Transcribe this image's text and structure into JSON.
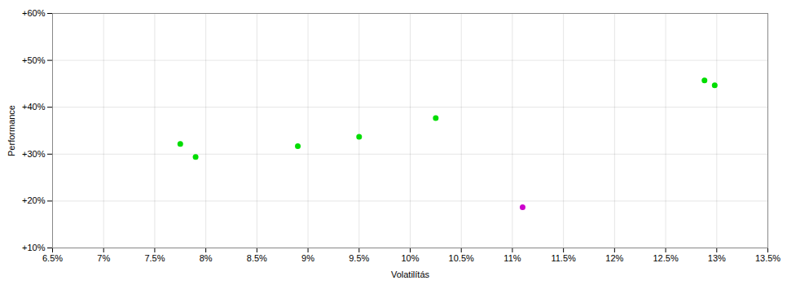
{
  "chart_data": {
    "type": "scatter",
    "xlabel": "Volatilítás",
    "ylabel": "Performance",
    "xlim": [
      0.065,
      0.135
    ],
    "ylim": [
      0.1,
      0.6
    ],
    "xticks": [
      {
        "value": 0.065,
        "label": "6.5%"
      },
      {
        "value": 0.07,
        "label": "7%"
      },
      {
        "value": 0.075,
        "label": "7.5%"
      },
      {
        "value": 0.08,
        "label": "8%"
      },
      {
        "value": 0.085,
        "label": "8.5%"
      },
      {
        "value": 0.09,
        "label": "9%"
      },
      {
        "value": 0.095,
        "label": "9.5%"
      },
      {
        "value": 0.1,
        "label": "10%"
      },
      {
        "value": 0.105,
        "label": "10.5%"
      },
      {
        "value": 0.11,
        "label": "11%"
      },
      {
        "value": 0.115,
        "label": "11.5%"
      },
      {
        "value": 0.12,
        "label": "12%"
      },
      {
        "value": 0.125,
        "label": "12.5%"
      },
      {
        "value": 0.13,
        "label": "13%"
      },
      {
        "value": 0.135,
        "label": "13.5%"
      }
    ],
    "yticks": [
      {
        "value": 0.1,
        "label": "+10%"
      },
      {
        "value": 0.2,
        "label": "+20%"
      },
      {
        "value": 0.3,
        "label": "+30%"
      },
      {
        "value": 0.4,
        "label": "+40%"
      },
      {
        "value": 0.5,
        "label": "+50%"
      },
      {
        "value": 0.6,
        "label": "+60%"
      }
    ],
    "grid": true,
    "series": [
      {
        "color": "#00dd00",
        "x": [
          0.0775,
          0.079,
          0.089,
          0.095,
          0.1025,
          0.1288,
          0.1298
        ],
        "values": [
          0.322,
          0.294,
          0.317,
          0.337,
          0.377,
          0.457,
          0.447
        ]
      },
      {
        "color": "#cc00cc",
        "x": [
          0.111
        ],
        "values": [
          0.187
        ]
      }
    ]
  }
}
